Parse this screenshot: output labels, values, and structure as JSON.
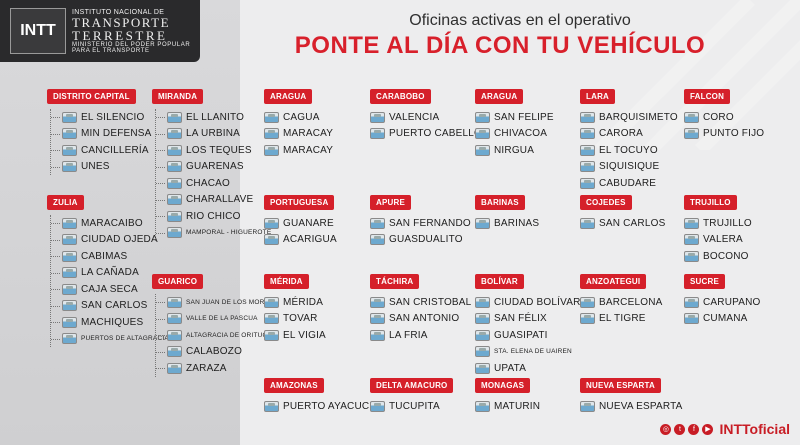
{
  "header": {
    "logo_mark": "INTT",
    "logo_line1": "INSTITUTO NACIONAL DE",
    "logo_line2": "TRANSPORTE",
    "logo_line3": "TERRESTRE",
    "logo_line4": "MINISTERIO DEL PODER POPULAR",
    "logo_line5": "PARA EL TRANSPORTE",
    "subtitle": "Oficinas activas en el operativo",
    "title": "PONTE AL DÍA CON TU VEHÍCULO"
  },
  "states": {
    "distrito_capital": {
      "name": "DISTRITO CAPITAL",
      "offices": [
        "EL SILENCIO",
        "MIN DEFENSA",
        "CANCILLERÍA",
        "UNES"
      ]
    },
    "zulia": {
      "name": "ZULIA",
      "offices": [
        "MARACAIBO",
        "CIUDAD OJEDA",
        "CABIMAS",
        "LA CAÑADA",
        "CAJA SECA",
        "SAN CARLOS",
        "MACHIQUES",
        "PUERTOS DE ALTAGRACIA"
      ]
    },
    "miranda": {
      "name": "MIRANDA",
      "offices": [
        "EL LLANITO",
        "LA URBINA",
        "LOS TEQUES",
        "GUARENAS",
        "CHACAO",
        "CHARALLAVE",
        "RIO CHICO",
        "MAMPORAL - HIGUEROTE"
      ]
    },
    "guarico": {
      "name": "GUARICO",
      "offices": [
        "SAN JUAN DE LOS MORROS",
        "VALLE DE LA PASCUA",
        "ALTAGRACIA DE ORITUCO",
        "CALABOZO",
        "ZARAZA"
      ]
    },
    "aragua1": {
      "name": "ARAGUA",
      "offices": [
        "CAGUA",
        "MARACAY",
        "MARACAY"
      ]
    },
    "carabobo": {
      "name": "CARABOBO",
      "offices": [
        "VALENCIA",
        "PUERTO CABELLO"
      ]
    },
    "aragua2": {
      "name": "ARAGUA",
      "offices": [
        "SAN FELIPE",
        "CHIVACOA",
        "NIRGUA"
      ]
    },
    "lara": {
      "name": "LARA",
      "offices": [
        "BARQUISIMETO",
        "CARORA",
        "EL TOCUYO",
        "SIQUISIQUE",
        "CABUDARE"
      ]
    },
    "falcon": {
      "name": "FALCON",
      "offices": [
        "CORO",
        "PUNTO FIJO"
      ]
    },
    "portuguesa": {
      "name": "PORTUGUESA",
      "offices": [
        "GUANARE",
        "ACARIGUA"
      ]
    },
    "apure": {
      "name": "APURE",
      "offices": [
        "SAN FERNANDO",
        "GUASDUALITO"
      ]
    },
    "barinas": {
      "name": "BARINAS",
      "offices": [
        "BARINAS"
      ]
    },
    "cojedes": {
      "name": "COJEDES",
      "offices": [
        "SAN CARLOS"
      ]
    },
    "trujillo": {
      "name": "TRUJILLO",
      "offices": [
        "TRUJILLO",
        "VALERA",
        "BOCONO"
      ]
    },
    "merida": {
      "name": "MÉRIDA",
      "offices": [
        "MÉRIDA",
        "TOVAR",
        "EL VIGIA"
      ]
    },
    "tachira": {
      "name": "TÁCHIRA",
      "offices": [
        "SAN CRISTOBAL",
        "SAN ANTONIO",
        "LA FRIA"
      ]
    },
    "bolivar": {
      "name": "BOLÍVAR",
      "offices": [
        "CIUDAD BOLÍVAR",
        "SAN FÉLIX",
        "GUASIPATI",
        "STA. ELENA DE UAIREN",
        "UPATA"
      ]
    },
    "anzoategui": {
      "name": "ANZOATEGUI",
      "offices": [
        "BARCELONA",
        "EL TIGRE"
      ]
    },
    "sucre": {
      "name": "SUCRE",
      "offices": [
        "CARUPANO",
        "CUMANA"
      ]
    },
    "amazonas": {
      "name": "AMAZONAS",
      "offices": [
        "PUERTO AYACUCHO"
      ]
    },
    "delta_amacuro": {
      "name": "DELTA AMACURO",
      "offices": [
        "TUCUPITA"
      ]
    },
    "monagas": {
      "name": "MONAGAS",
      "offices": [
        "MATURIN"
      ]
    },
    "nueva_esparta": {
      "name": "NUEVA ESPARTA",
      "offices": [
        "NUEVA ESPARTA"
      ]
    }
  },
  "footer": {
    "handle": "INTToficial",
    "social_icons": [
      "instagram-icon",
      "twitter-icon",
      "facebook-icon",
      "youtube-icon"
    ]
  },
  "colors": {
    "accent": "#d5202a",
    "dark": "#2a2a2c"
  }
}
